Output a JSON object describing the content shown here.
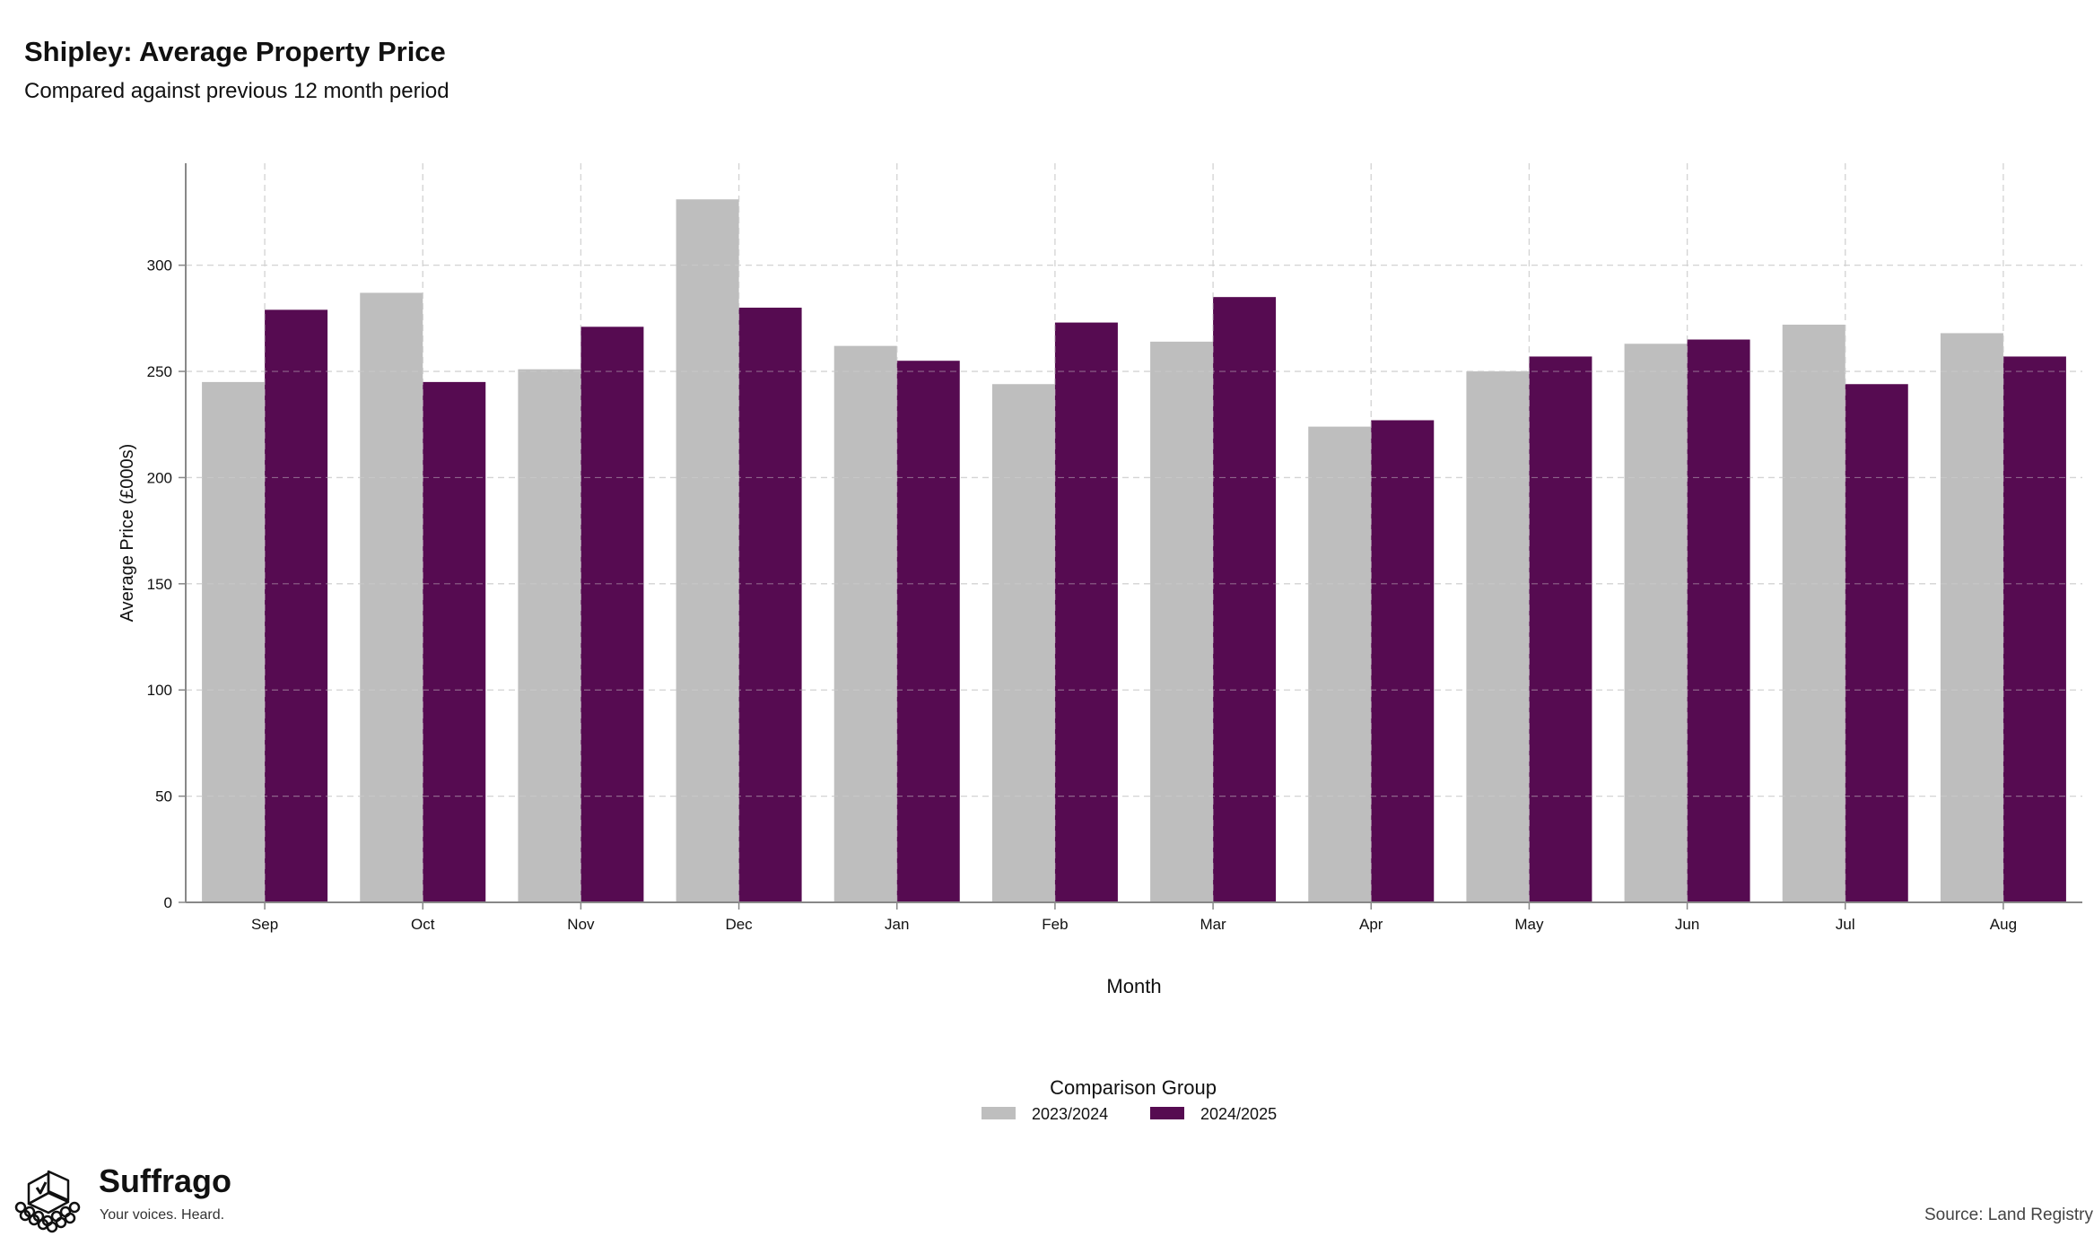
{
  "chart_data": {
    "type": "bar",
    "title": "Shipley: Average Property Price",
    "subtitle": "Compared against previous 12 month period",
    "xlabel": "Month",
    "ylabel": "Average Price (£000s)",
    "ylim": [
      0,
      348
    ],
    "yticks": [
      0,
      50,
      100,
      150,
      200,
      250,
      300
    ],
    "grid": true,
    "legend_title": "Comparison Group",
    "legend_position": "bottom-center",
    "categories": [
      "Sep",
      "Oct",
      "Nov",
      "Dec",
      "Jan",
      "Feb",
      "Mar",
      "Apr",
      "May",
      "Jun",
      "Jul",
      "Aug"
    ],
    "series": [
      {
        "name": "2023/2024",
        "color": "#bebebe",
        "values": [
          245,
          287,
          251,
          331,
          262,
          244,
          264,
          224,
          250,
          263,
          272,
          268
        ]
      },
      {
        "name": "2024/2025",
        "color": "#560b51",
        "values": [
          279,
          245,
          271,
          280,
          255,
          273,
          285,
          227,
          257,
          265,
          244,
          257
        ]
      }
    ]
  },
  "footer": {
    "source": "Source: Land Registry",
    "logo_name": "Suffrago",
    "logo_tagline": "Your voices. Heard."
  }
}
